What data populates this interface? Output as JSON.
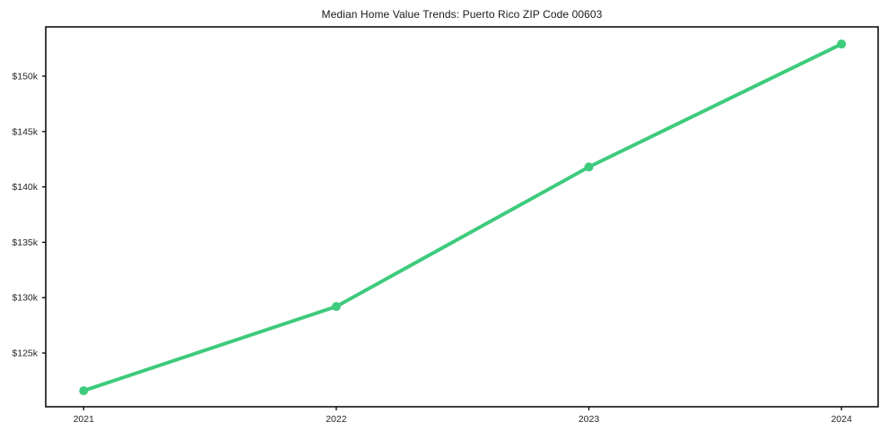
{
  "title": "Median Home Value Trends: Puerto Rico ZIP Code 00603",
  "chart_data": {
    "type": "line",
    "title": "Median Home Value Trends: Puerto Rico ZIP Code 00603",
    "x": [
      2021,
      2022,
      2023,
      2024
    ],
    "x_tick_labels": [
      "2021",
      "2022",
      "2023",
      "2024"
    ],
    "series": [
      {
        "name": "Median Home Value",
        "values": [
          121600,
          129200,
          141800,
          152900
        ]
      }
    ],
    "y_ticks": [
      125000,
      130000,
      135000,
      140000,
      145000,
      150000
    ],
    "y_tick_labels": [
      "$125k",
      "$130k",
      "$135k",
      "$140k",
      "$145k",
      "$150k"
    ],
    "xlabel": "",
    "ylabel": "",
    "xlim": [
      2020.85,
      2024.145
    ],
    "ylim": [
      120150,
      154450
    ],
    "grid": false,
    "legend": null,
    "line_color": "#3dcb7c",
    "marker": "circle",
    "axis_color": "#000000",
    "background_color": "#ffffff"
  }
}
